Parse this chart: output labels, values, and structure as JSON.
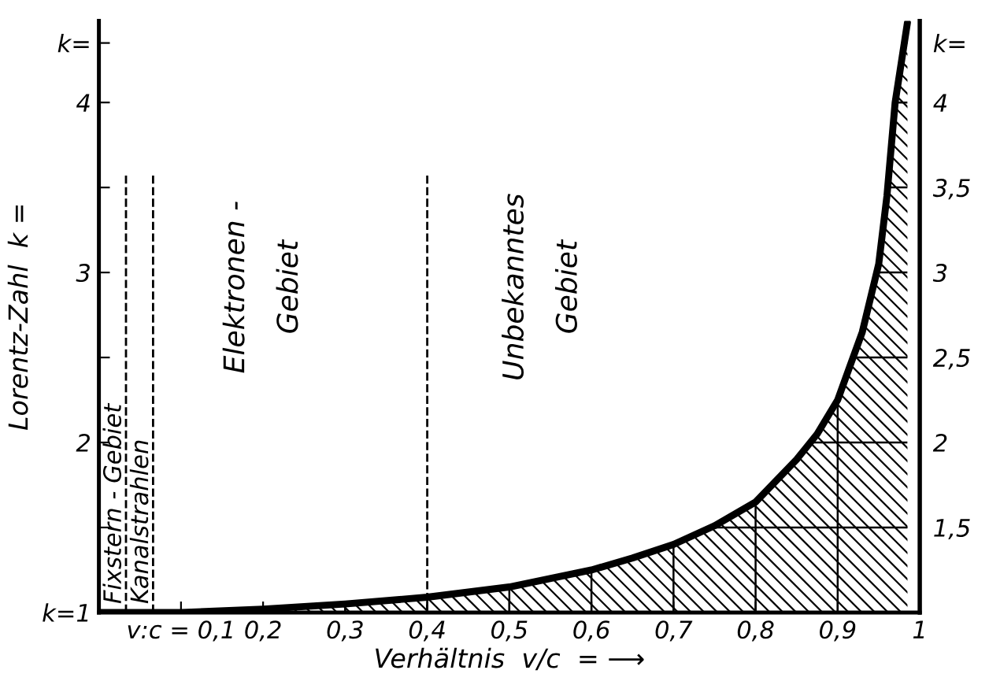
{
  "chart_data": {
    "type": "area",
    "ylabel": "Lorentz-Zahl  k =",
    "xlabel": "Verhältnis  v/c  = ⟶",
    "x": [
      0,
      0.1,
      0.2,
      0.3,
      0.4,
      0.5,
      0.6,
      0.65,
      0.7,
      0.75,
      0.8,
      0.85,
      0.875,
      0.9,
      0.915,
      0.93,
      0.94,
      0.95,
      0.96,
      0.97,
      0.978,
      0.985
    ],
    "series": [
      {
        "color": "#000000",
        "values": [
          1,
          1,
          1.02,
          1.05,
          1.09,
          1.15,
          1.25,
          1.32,
          1.4,
          1.51,
          1.65,
          1.9,
          2.05,
          2.25,
          2.45,
          2.65,
          2.85,
          3.05,
          3.45,
          4.0,
          4.25,
          4.47
        ]
      }
    ],
    "xlim": [
      0,
      1
    ],
    "ylim": [
      1,
      4.48
    ],
    "y2lim": [
      1,
      4.48
    ],
    "xticks": [
      {
        "value": 0.1,
        "label": "v:c = 0,1"
      },
      {
        "value": 0.2,
        "label": "0,2"
      },
      {
        "value": 0.3,
        "label": "0,3"
      },
      {
        "value": 0.4,
        "label": "0,4"
      },
      {
        "value": 0.5,
        "label": "0,5"
      },
      {
        "value": 0.6,
        "label": "0,6"
      },
      {
        "value": 0.7,
        "label": "0,7"
      },
      {
        "value": 0.8,
        "label": "0,8"
      },
      {
        "value": 0.9,
        "label": "0,9"
      },
      1
    ],
    "yticks": [
      {
        "value": 1,
        "label": "k=1"
      },
      {
        "value": 1.5,
        "label": null
      },
      2,
      {
        "value": 2.5,
        "label": null
      },
      3,
      {
        "value": 3.5,
        "label": null
      },
      4,
      {
        "value": 4.35,
        "label": "k="
      }
    ],
    "y2ticks": [
      {
        "value": 1.5,
        "label": "1,5"
      },
      2,
      {
        "value": 2.5,
        "label": "2,5"
      },
      3,
      {
        "value": 3.5,
        "label": "3,5"
      },
      4,
      {
        "value": 4.35,
        "label": "k="
      }
    ],
    "ref_lines": [
      {
        "axis": "x",
        "value": 0.033,
        "label": "Fixstern - Gebiet",
        "line_style": "dashed",
        "color": "#000000"
      },
      {
        "axis": "x",
        "value": 0.066,
        "label": "Kanalstrahlen",
        "line_style": "dashed",
        "color": "#000000"
      },
      {
        "axis": "x",
        "value": 0.4,
        "line_style": "dashed",
        "color": "#000000"
      }
    ],
    "annotations": [
      "Elektronen -\nGebiet",
      "Unbekanntes\nGebiet"
    ],
    "grid": true,
    "marker": "none",
    "line_style": "solid"
  }
}
